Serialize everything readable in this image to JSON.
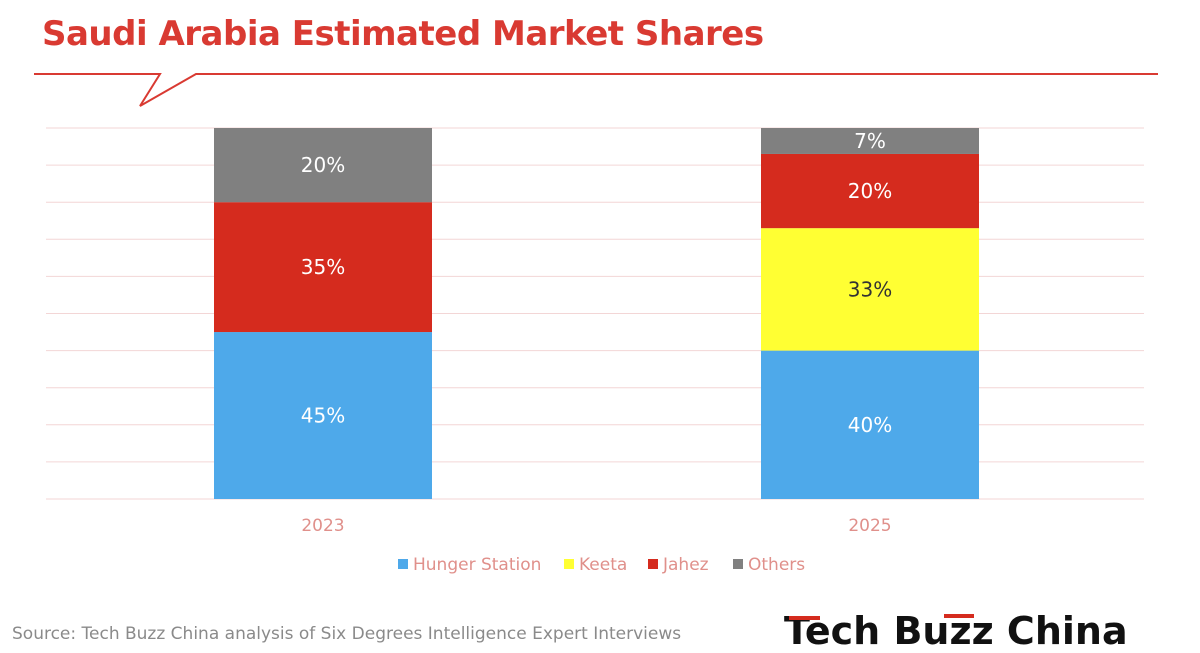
{
  "title": "Saudi Arabia Estimated Market Shares",
  "source": "Source: Tech Buzz China analysis of Six Degrees Intelligence Expert Interviews",
  "logo_text": "Tech Buzz China",
  "colors": {
    "title": "#d93a32",
    "Hunger Station": "#4ea9ea",
    "Keeta": "#ffff33",
    "Jahez": "#d52b1e",
    "Others": "#808080",
    "grid": "#f3d6d6",
    "axis_text": "#e0908b",
    "legend_text": "#e0908b"
  },
  "chart_data": {
    "type": "bar",
    "stacked": true,
    "categories": [
      "2023",
      "2025"
    ],
    "series": [
      {
        "name": "Hunger Station",
        "values": [
          45,
          40
        ],
        "labels": [
          "45%",
          "40%"
        ]
      },
      {
        "name": "Keeta",
        "values": [
          0,
          33
        ],
        "labels": [
          "",
          "33%"
        ]
      },
      {
        "name": "Jahez",
        "values": [
          35,
          20
        ],
        "labels": [
          "35%",
          "20%"
        ]
      },
      {
        "name": "Others",
        "values": [
          20,
          7
        ],
        "labels": [
          "20%",
          "7%"
        ]
      }
    ],
    "ylim": [
      0,
      100
    ],
    "grid": true,
    "legend": "bottom"
  }
}
